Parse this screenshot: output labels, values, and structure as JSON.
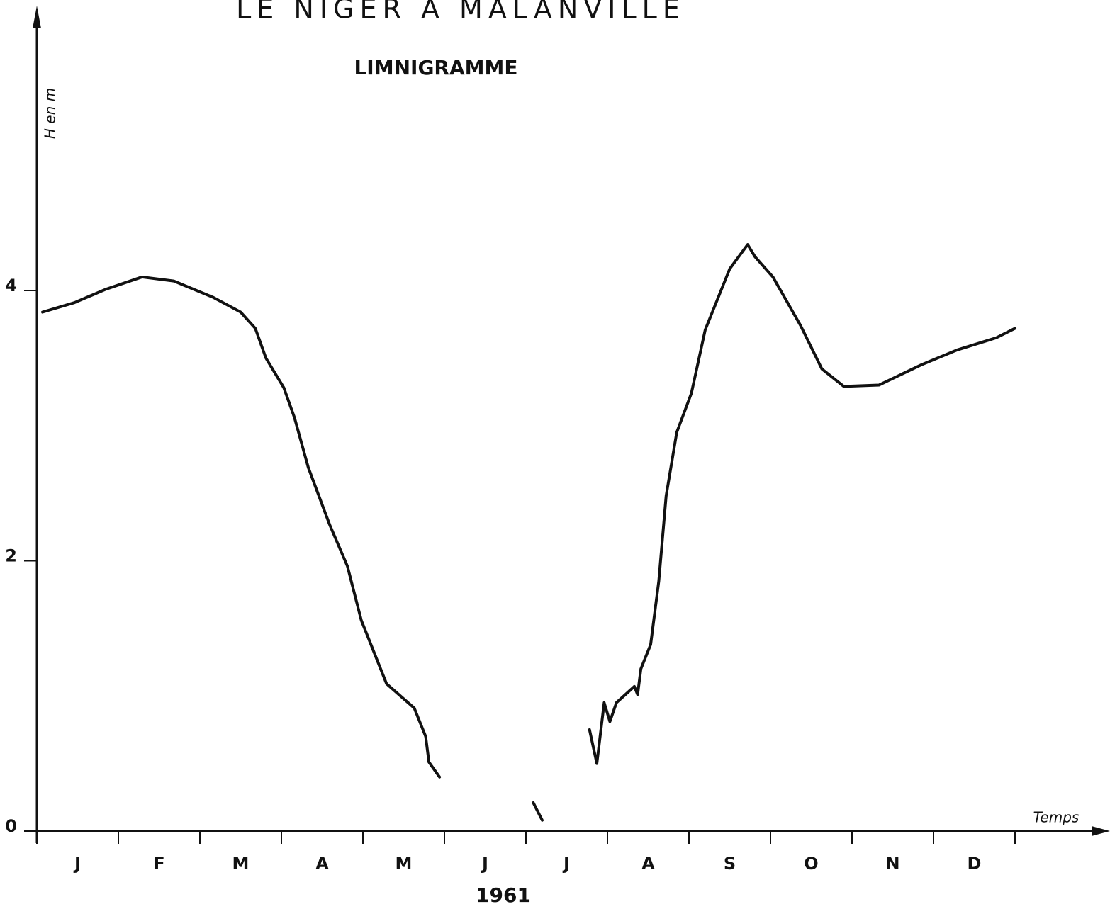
{
  "chart_data": {
    "type": "line",
    "title": "LE NIGER A MALANVILLE",
    "subtitle": "LIMNIGRAMME",
    "y_label": "H en m",
    "x_label": "Temps",
    "year_label": "1961",
    "categories": [
      "J",
      "F",
      "M",
      "A",
      "M",
      "J",
      "J",
      "A",
      "S",
      "O",
      "N",
      "D"
    ],
    "xlim": [
      0,
      12
    ],
    "xticks": [
      0,
      1,
      2,
      3,
      4,
      5,
      6,
      7,
      8,
      9,
      10,
      11,
      12
    ],
    "ylim": [
      0,
      6
    ],
    "yticks": [
      0,
      2,
      4
    ],
    "grid": false,
    "series": [
      {
        "name": "H",
        "color": "#111111",
        "x": [
          0.07,
          0.46,
          0.85,
          1.29,
          1.68,
          2.16,
          2.5,
          2.68,
          2.81,
          3.03,
          3.16,
          3.33,
          3.59,
          3.81,
          3.98,
          4.29,
          4.63,
          4.77,
          4.81,
          4.94,
          null,
          6.09,
          6.2,
          null,
          6.78,
          6.87,
          6.96,
          7.03,
          7.11,
          7.33,
          7.37,
          7.41,
          7.53,
          7.63,
          7.72,
          7.85,
          8.03,
          8.2,
          8.5,
          8.72,
          8.81,
          9.03,
          9.37,
          9.63,
          9.9,
          10.33,
          10.85,
          11.29,
          11.77,
          12.0
        ],
        "values": [
          3.84,
          3.91,
          4.01,
          4.1,
          4.07,
          3.95,
          3.84,
          3.72,
          3.5,
          3.28,
          3.06,
          2.69,
          2.27,
          1.96,
          1.56,
          1.09,
          0.91,
          0.7,
          0.51,
          0.4,
          null,
          0.21,
          0.08,
          null,
          0.75,
          0.5,
          0.95,
          0.81,
          0.95,
          1.07,
          1.01,
          1.2,
          1.38,
          1.85,
          2.48,
          2.95,
          3.24,
          3.71,
          4.16,
          4.34,
          4.25,
          4.1,
          3.74,
          3.42,
          3.29,
          3.3,
          3.45,
          3.56,
          3.65,
          3.72
        ]
      }
    ]
  }
}
